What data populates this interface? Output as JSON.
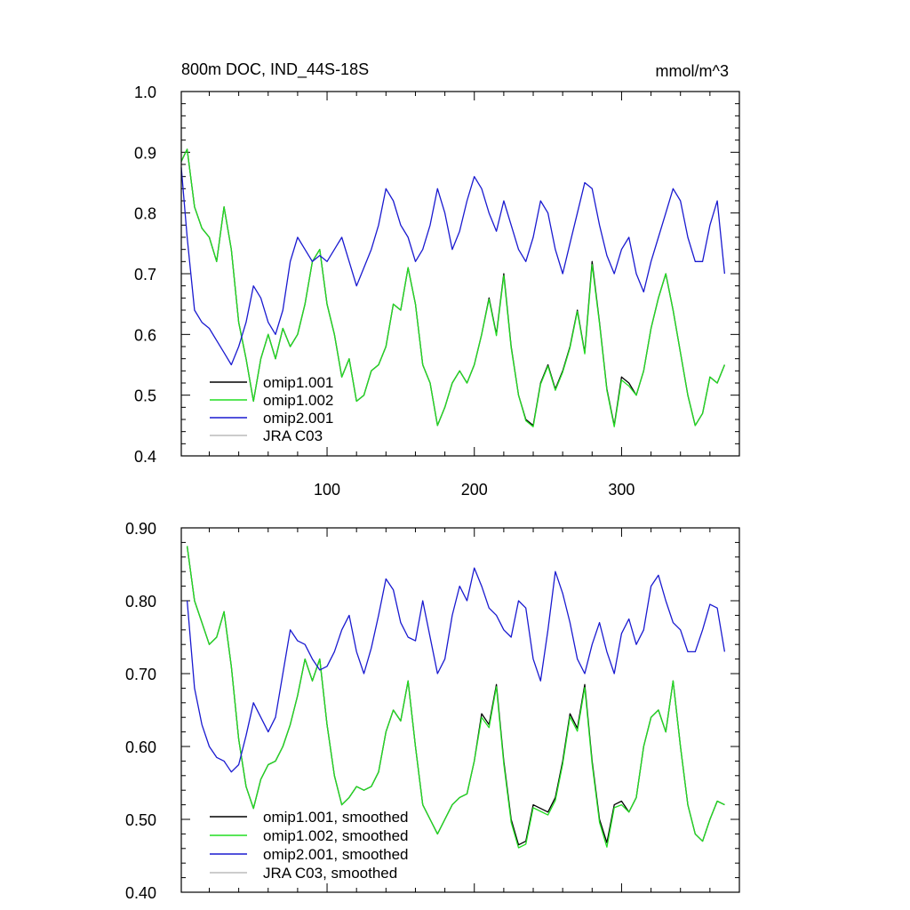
{
  "chart_data": [
    {
      "type": "line",
      "title": "800m DOC, IND_44S-18S",
      "units_label": "mmol/m^3",
      "xlabel": "",
      "ylabel": "",
      "xlim": [
        1,
        380
      ],
      "ylim": [
        0.4,
        1.0
      ],
      "x_ticks": [
        100,
        200,
        300
      ],
      "x_tick_labels": [
        "100",
        "200",
        "300"
      ],
      "y_ticks": [
        0.4,
        0.5,
        0.6,
        0.7,
        0.8,
        0.9,
        1.0
      ],
      "y_tick_labels": [
        "0.4",
        "0.5",
        "0.6",
        "0.7",
        "0.8",
        "0.9",
        "1.0"
      ],
      "grid": false,
      "legend_position": "bottom-left",
      "series": [
        {
          "name": "omip1.001",
          "color": "#000000",
          "x": [
            1,
            5,
            10,
            15,
            20,
            25,
            30,
            35,
            40,
            45,
            50,
            55,
            60,
            65,
            70,
            75,
            80,
            85,
            90,
            95,
            100,
            105,
            110,
            115,
            120,
            125,
            130,
            135,
            140,
            145,
            150,
            155,
            160,
            165,
            170,
            175,
            180,
            185,
            190,
            195,
            200,
            205,
            210,
            215,
            220,
            225,
            230,
            235,
            240,
            245,
            250,
            255,
            260,
            265,
            270,
            275,
            280,
            285,
            290,
            295,
            300,
            305,
            310,
            315,
            320,
            325,
            330,
            335,
            340,
            345,
            350,
            355,
            360,
            365,
            370
          ],
          "values": [
            0.885,
            0.905,
            0.81,
            0.775,
            0.76,
            0.72,
            0.81,
            0.74,
            0.62,
            0.56,
            0.49,
            0.56,
            0.6,
            0.56,
            0.61,
            0.58,
            0.6,
            0.65,
            0.72,
            0.74,
            0.65,
            0.6,
            0.53,
            0.56,
            0.49,
            0.5,
            0.54,
            0.55,
            0.58,
            0.65,
            0.64,
            0.71,
            0.65,
            0.55,
            0.52,
            0.45,
            0.48,
            0.52,
            0.54,
            0.52,
            0.55,
            0.6,
            0.66,
            0.6,
            0.7,
            0.58,
            0.5,
            0.46,
            0.45,
            0.52,
            0.55,
            0.51,
            0.54,
            0.58,
            0.64,
            0.57,
            0.72,
            0.62,
            0.51,
            0.45,
            0.53,
            0.52,
            0.5,
            0.54,
            0.61,
            0.66,
            0.7,
            0.64,
            0.57,
            0.5,
            0.45,
            0.47,
            0.53,
            0.52,
            0.55
          ]
        },
        {
          "name": "omip1.002",
          "color": "#22dd22",
          "x": [
            1,
            5,
            10,
            15,
            20,
            25,
            30,
            35,
            40,
            45,
            50,
            55,
            60,
            65,
            70,
            75,
            80,
            85,
            90,
            95,
            100,
            105,
            110,
            115,
            120,
            125,
            130,
            135,
            140,
            145,
            150,
            155,
            160,
            165,
            170,
            175,
            180,
            185,
            190,
            195,
            200,
            205,
            210,
            215,
            220,
            225,
            230,
            235,
            240,
            245,
            250,
            255,
            260,
            265,
            270,
            275,
            280,
            285,
            290,
            295,
            300,
            305,
            310,
            315,
            320,
            325,
            330,
            335,
            340,
            345,
            350,
            355,
            360,
            365,
            370
          ],
          "values": [
            0.885,
            0.905,
            0.81,
            0.775,
            0.76,
            0.72,
            0.81,
            0.74,
            0.62,
            0.56,
            0.49,
            0.56,
            0.6,
            0.56,
            0.61,
            0.58,
            0.6,
            0.65,
            0.72,
            0.74,
            0.65,
            0.6,
            0.53,
            0.56,
            0.49,
            0.5,
            0.54,
            0.55,
            0.58,
            0.65,
            0.64,
            0.71,
            0.65,
            0.55,
            0.52,
            0.45,
            0.48,
            0.52,
            0.54,
            0.52,
            0.55,
            0.6,
            0.658,
            0.598,
            0.697,
            0.578,
            0.5,
            0.458,
            0.448,
            0.518,
            0.548,
            0.508,
            0.538,
            0.578,
            0.638,
            0.568,
            0.715,
            0.618,
            0.508,
            0.448,
            0.525,
            0.515,
            0.5,
            0.54,
            0.61,
            0.66,
            0.7,
            0.64,
            0.57,
            0.5,
            0.45,
            0.47,
            0.53,
            0.52,
            0.55
          ]
        },
        {
          "name": "omip2.001",
          "color": "#1a1ad0",
          "x": [
            1,
            5,
            10,
            15,
            20,
            25,
            30,
            35,
            40,
            45,
            50,
            55,
            60,
            65,
            70,
            75,
            80,
            85,
            90,
            95,
            100,
            105,
            110,
            115,
            120,
            125,
            130,
            135,
            140,
            145,
            150,
            155,
            160,
            165,
            170,
            175,
            180,
            185,
            190,
            195,
            200,
            205,
            210,
            215,
            220,
            225,
            230,
            235,
            240,
            245,
            250,
            255,
            260,
            265,
            270,
            275,
            280,
            285,
            290,
            295,
            300,
            305,
            310,
            315,
            320,
            325,
            330,
            335,
            340,
            345,
            350,
            355,
            360,
            365,
            370
          ],
          "values": [
            0.875,
            0.76,
            0.64,
            0.62,
            0.61,
            0.59,
            0.57,
            0.55,
            0.58,
            0.62,
            0.68,
            0.66,
            0.62,
            0.6,
            0.64,
            0.72,
            0.76,
            0.74,
            0.72,
            0.73,
            0.72,
            0.74,
            0.76,
            0.72,
            0.68,
            0.71,
            0.74,
            0.78,
            0.84,
            0.82,
            0.78,
            0.76,
            0.72,
            0.74,
            0.78,
            0.84,
            0.8,
            0.74,
            0.77,
            0.82,
            0.86,
            0.84,
            0.8,
            0.77,
            0.82,
            0.78,
            0.74,
            0.72,
            0.76,
            0.82,
            0.8,
            0.74,
            0.7,
            0.75,
            0.8,
            0.85,
            0.84,
            0.78,
            0.73,
            0.7,
            0.74,
            0.76,
            0.7,
            0.67,
            0.72,
            0.76,
            0.8,
            0.84,
            0.82,
            0.76,
            0.72,
            0.72,
            0.78,
            0.82,
            0.7
          ]
        },
        {
          "name": "JRA C03",
          "color": "#bbbbbb",
          "x": [],
          "values": []
        }
      ]
    },
    {
      "type": "line",
      "title": "",
      "xlabel": "",
      "ylabel": "",
      "xlim": [
        1,
        380
      ],
      "ylim": [
        0.4,
        0.9
      ],
      "x_ticks": [
        100,
        200,
        300
      ],
      "x_tick_labels": [
        "",
        "",
        ""
      ],
      "y_ticks": [
        0.4,
        0.5,
        0.6,
        0.7,
        0.8,
        0.9
      ],
      "y_tick_labels": [
        "0.40",
        "0.50",
        "0.60",
        "0.70",
        "0.80",
        "0.90"
      ],
      "grid": false,
      "legend_position": "bottom-left",
      "series": [
        {
          "name": "omip1.001, smoothed",
          "color": "#000000",
          "x": [
            5,
            10,
            15,
            20,
            25,
            30,
            35,
            40,
            45,
            50,
            55,
            60,
            65,
            70,
            75,
            80,
            85,
            90,
            95,
            100,
            105,
            110,
            115,
            120,
            125,
            130,
            135,
            140,
            145,
            150,
            155,
            160,
            165,
            170,
            175,
            180,
            185,
            190,
            195,
            200,
            205,
            210,
            215,
            220,
            225,
            230,
            235,
            240,
            245,
            250,
            255,
            260,
            265,
            270,
            275,
            280,
            285,
            290,
            295,
            300,
            305,
            310,
            315,
            320,
            325,
            330,
            335,
            340,
            345,
            350,
            355,
            360,
            365,
            370
          ],
          "values": [
            0.875,
            0.8,
            0.77,
            0.74,
            0.75,
            0.785,
            0.71,
            0.61,
            0.545,
            0.515,
            0.555,
            0.575,
            0.58,
            0.6,
            0.63,
            0.67,
            0.72,
            0.69,
            0.72,
            0.63,
            0.56,
            0.52,
            0.53,
            0.545,
            0.54,
            0.545,
            0.565,
            0.62,
            0.65,
            0.635,
            0.69,
            0.6,
            0.52,
            0.5,
            0.48,
            0.5,
            0.52,
            0.53,
            0.535,
            0.58,
            0.645,
            0.63,
            0.685,
            0.58,
            0.5,
            0.465,
            0.47,
            0.52,
            0.515,
            0.51,
            0.53,
            0.58,
            0.645,
            0.625,
            0.685,
            0.58,
            0.5,
            0.468,
            0.52,
            0.525,
            0.51,
            0.53,
            0.6,
            0.64,
            0.65,
            0.62,
            0.69,
            0.6,
            0.52,
            0.48,
            0.47,
            0.5,
            0.525,
            0.52
          ]
        },
        {
          "name": "omip1.002, smoothed",
          "color": "#22dd22",
          "x": [
            5,
            10,
            15,
            20,
            25,
            30,
            35,
            40,
            45,
            50,
            55,
            60,
            65,
            70,
            75,
            80,
            85,
            90,
            95,
            100,
            105,
            110,
            115,
            120,
            125,
            130,
            135,
            140,
            145,
            150,
            155,
            160,
            165,
            170,
            175,
            180,
            185,
            190,
            195,
            200,
            205,
            210,
            215,
            220,
            225,
            230,
            235,
            240,
            245,
            250,
            255,
            260,
            265,
            270,
            275,
            280,
            285,
            290,
            295,
            300,
            305,
            310,
            315,
            320,
            325,
            330,
            335,
            340,
            345,
            350,
            355,
            360,
            365,
            370
          ],
          "values": [
            0.875,
            0.8,
            0.77,
            0.74,
            0.75,
            0.785,
            0.71,
            0.61,
            0.545,
            0.515,
            0.555,
            0.575,
            0.58,
            0.6,
            0.63,
            0.67,
            0.72,
            0.69,
            0.72,
            0.63,
            0.56,
            0.52,
            0.53,
            0.545,
            0.54,
            0.545,
            0.565,
            0.62,
            0.65,
            0.635,
            0.69,
            0.6,
            0.52,
            0.5,
            0.48,
            0.5,
            0.52,
            0.53,
            0.535,
            0.58,
            0.64,
            0.626,
            0.682,
            0.576,
            0.496,
            0.461,
            0.466,
            0.516,
            0.511,
            0.506,
            0.526,
            0.576,
            0.641,
            0.621,
            0.681,
            0.576,
            0.496,
            0.462,
            0.516,
            0.52,
            0.51,
            0.53,
            0.6,
            0.64,
            0.65,
            0.62,
            0.69,
            0.6,
            0.52,
            0.48,
            0.47,
            0.5,
            0.525,
            0.52
          ]
        },
        {
          "name": "omip2.001, smoothed",
          "color": "#1a1ad0",
          "x": [
            5,
            10,
            15,
            20,
            25,
            30,
            35,
            40,
            45,
            50,
            55,
            60,
            65,
            70,
            75,
            80,
            85,
            90,
            95,
            100,
            105,
            110,
            115,
            120,
            125,
            130,
            135,
            140,
            145,
            150,
            155,
            160,
            165,
            170,
            175,
            180,
            185,
            190,
            195,
            200,
            205,
            210,
            215,
            220,
            225,
            230,
            235,
            240,
            245,
            250,
            255,
            260,
            265,
            270,
            275,
            280,
            285,
            290,
            295,
            300,
            305,
            310,
            315,
            320,
            325,
            330,
            335,
            340,
            345,
            350,
            355,
            360,
            365,
            370
          ],
          "values": [
            0.8,
            0.68,
            0.63,
            0.6,
            0.585,
            0.58,
            0.565,
            0.575,
            0.615,
            0.66,
            0.64,
            0.62,
            0.64,
            0.7,
            0.76,
            0.745,
            0.74,
            0.72,
            0.705,
            0.71,
            0.73,
            0.76,
            0.78,
            0.73,
            0.7,
            0.735,
            0.78,
            0.83,
            0.815,
            0.77,
            0.75,
            0.745,
            0.8,
            0.75,
            0.7,
            0.72,
            0.78,
            0.82,
            0.8,
            0.845,
            0.82,
            0.79,
            0.78,
            0.76,
            0.75,
            0.8,
            0.79,
            0.72,
            0.69,
            0.76,
            0.84,
            0.81,
            0.77,
            0.72,
            0.7,
            0.74,
            0.77,
            0.73,
            0.7,
            0.755,
            0.775,
            0.74,
            0.76,
            0.82,
            0.835,
            0.8,
            0.77,
            0.76,
            0.73,
            0.73,
            0.76,
            0.795,
            0.79,
            0.73
          ]
        },
        {
          "name": "JRA C03, smoothed",
          "color": "#bbbbbb",
          "x": [],
          "values": []
        }
      ]
    }
  ]
}
